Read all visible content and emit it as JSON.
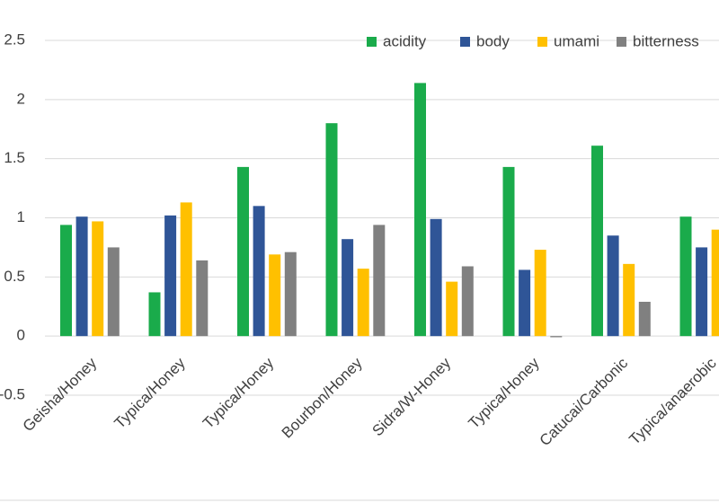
{
  "chart_data": {
    "type": "bar",
    "categories": [
      "Geisha/Honey",
      "Typica/Honey",
      "Typica/Honey",
      "Bourbon/Honey",
      "Sidra/W-Honey",
      "Typica/Honey",
      "Catucai/Carbonic",
      "Typica/anaerobic"
    ],
    "series": [
      {
        "name": "acidity",
        "color": "#1aab4b",
        "values": [
          0.94,
          0.37,
          1.43,
          1.8,
          2.14,
          1.43,
          1.61,
          1.01
        ]
      },
      {
        "name": "body",
        "color": "#2f5597",
        "values": [
          1.01,
          1.02,
          1.1,
          0.82,
          0.99,
          0.56,
          0.85,
          0.75
        ]
      },
      {
        "name": "umami",
        "color": "#ffc000",
        "values": [
          0.97,
          1.13,
          0.69,
          0.57,
          0.46,
          0.73,
          0.61,
          0.9
        ]
      },
      {
        "name": "bitterness",
        "color": "#808080",
        "values": [
          0.75,
          0.64,
          0.71,
          0.94,
          0.59,
          -0.01,
          0.29,
          null
        ]
      }
    ],
    "ylim": [
      -0.5,
      2.5
    ],
    "yticks": [
      -0.5,
      0,
      0.5,
      1,
      1.5,
      2,
      2.5
    ],
    "grid": true,
    "legend": "top"
  }
}
